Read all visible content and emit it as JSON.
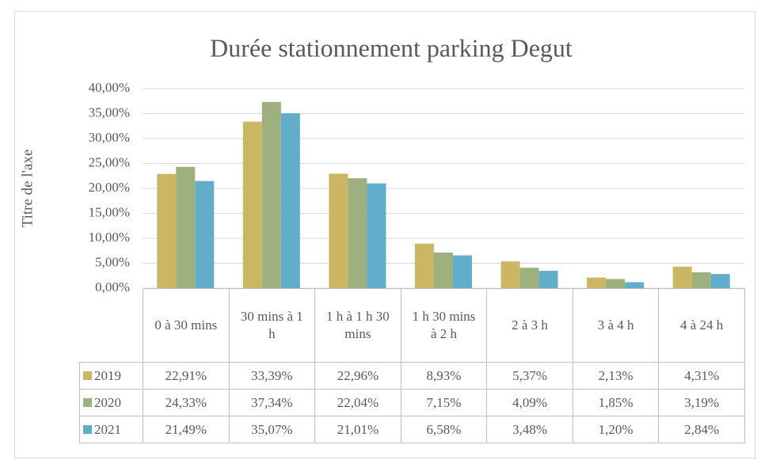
{
  "chart_data": {
    "type": "bar",
    "title": "Durée stationnement parking Degut",
    "y_axis_label": "Titre de l'axe",
    "categories": [
      "0 à 30 mins",
      "30 mins à 1 h",
      "1 h à 1 h 30 mins",
      "1 h 30 mins à 2 h",
      "2 à 3 h",
      "3 à 4 h",
      "4 à 24 h"
    ],
    "series": [
      {
        "name": "2019",
        "color": "#cbb664",
        "values": [
          22.91,
          33.39,
          22.96,
          8.93,
          5.37,
          2.13,
          4.31
        ],
        "value_labels": [
          "22,91%",
          "33,39%",
          "22,96%",
          "8,93%",
          "5,37%",
          "2,13%",
          "4,31%"
        ]
      },
      {
        "name": "2020",
        "color": "#9db07e",
        "values": [
          24.33,
          37.34,
          22.04,
          7.15,
          4.09,
          1.85,
          3.19
        ],
        "value_labels": [
          "24,33%",
          "37,34%",
          "22,04%",
          "7,15%",
          "4,09%",
          "1,85%",
          "3,19%"
        ]
      },
      {
        "name": "2021",
        "color": "#62adc9",
        "values": [
          21.49,
          35.07,
          21.01,
          6.58,
          3.48,
          1.2,
          2.84
        ],
        "value_labels": [
          "21,49%",
          "35,07%",
          "21,01%",
          "6,58%",
          "3,48%",
          "1,20%",
          "2,84%"
        ]
      }
    ],
    "ylim": [
      0,
      40
    ],
    "yticks": [
      {
        "value": 0,
        "label": "0,00%"
      },
      {
        "value": 5,
        "label": "5,00%"
      },
      {
        "value": 10,
        "label": "10,00%"
      },
      {
        "value": 15,
        "label": "15,00%"
      },
      {
        "value": 20,
        "label": "20,00%"
      },
      {
        "value": 25,
        "label": "25,00%"
      },
      {
        "value": 30,
        "label": "30,00%"
      },
      {
        "value": 35,
        "label": "35,00%"
      },
      {
        "value": 40,
        "label": "40,00%"
      }
    ],
    "grid": true
  }
}
